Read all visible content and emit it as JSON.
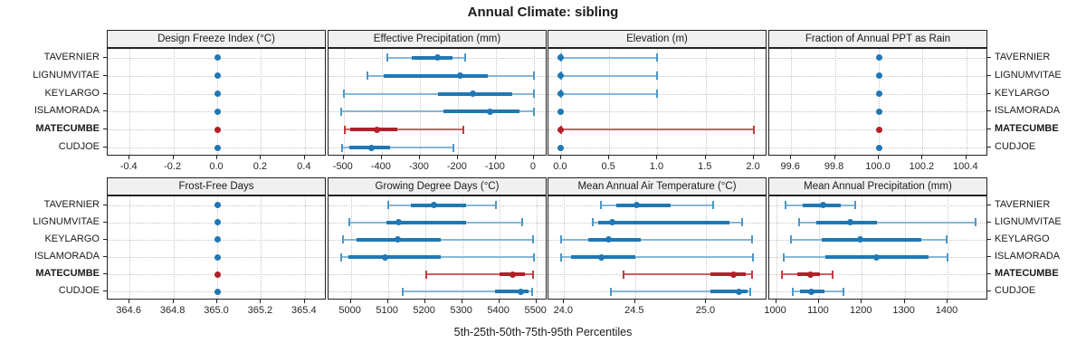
{
  "chart_data": {
    "type": "dotplot-trellis",
    "title": "Annual Climate: sibling",
    "footer": "5th-25th-50th-75th-95th Percentiles",
    "percentile_levels": [
      5,
      25,
      50,
      75,
      95
    ],
    "stations": [
      "TAVERNIER",
      "LIGNUMVITAE",
      "KEYLARGO",
      "ISLAMORADA",
      "MATECUMBE",
      "CUDJOE"
    ],
    "highlighted_station": "MATECUMBE",
    "legend_position": "bottom-caption",
    "grid": "dotted",
    "colors": {
      "blue": "#1f78b4",
      "blue_light": "#85b7d7",
      "blue_cap": "#4d97c6",
      "red": "#b2202a",
      "red_light": "#cd5f63",
      "red_cap": "#bf3a40",
      "strip_bg": "#f0f0f0",
      "border": "#222222",
      "gridline": "#c6c6c6"
    },
    "panels": [
      {
        "title": "Design Freeze Index (°C)",
        "row": 0,
        "col": 0,
        "range": [
          -0.5,
          0.5
        ],
        "ticks": [
          {
            "v": -0.4,
            "label": "-0.4"
          },
          {
            "v": -0.2,
            "label": "-0.2"
          },
          {
            "v": 0.0,
            "label": "0.0"
          },
          {
            "v": 0.2,
            "label": "0.2"
          },
          {
            "v": 0.4,
            "label": "0.4"
          }
        ],
        "values": {
          "TAVERNIER": [
            0,
            0,
            0,
            0,
            0
          ],
          "LIGNUMVITAE": [
            0,
            0,
            0,
            0,
            0
          ],
          "KEYLARGO": [
            0,
            0,
            0,
            0,
            0
          ],
          "ISLAMORADA": [
            0,
            0,
            0,
            0,
            0
          ],
          "MATECUMBE": [
            0,
            0,
            0,
            0,
            0
          ],
          "CUDJOE": [
            0,
            0,
            0,
            0,
            0
          ]
        }
      },
      {
        "title": "Effective Precipitation (mm)",
        "row": 0,
        "col": 1,
        "range": [
          -540,
          36
        ],
        "ticks": [
          {
            "v": -500,
            "label": "-500"
          },
          {
            "v": -400,
            "label": "-400"
          },
          {
            "v": -300,
            "label": "-300"
          },
          {
            "v": -200,
            "label": "-200"
          },
          {
            "v": -100,
            "label": "-100"
          },
          {
            "v": 0,
            "label": "0"
          }
        ],
        "values": {
          "TAVERNIER": [
            -385,
            -320,
            -253,
            -214,
            -180
          ],
          "LIGNUMVITAE": [
            -437,
            -395,
            -193,
            -121,
            0
          ],
          "KEYLARGO": [
            -500,
            -252,
            -160,
            -57,
            0
          ],
          "ISLAMORADA": [
            -507,
            -238,
            -115,
            -38,
            0
          ],
          "MATECUMBE": [
            -498,
            -483,
            -412,
            -360,
            -186
          ],
          "CUDJOE": [
            -505,
            -486,
            -426,
            -379,
            -212
          ]
        }
      },
      {
        "title": "Elevation (m)",
        "row": 0,
        "col": 2,
        "range": [
          -0.13,
          2.14
        ],
        "ticks": [
          {
            "v": 0.0,
            "label": "0.0"
          },
          {
            "v": 0.5,
            "label": "0.5"
          },
          {
            "v": 1.0,
            "label": "1.0"
          },
          {
            "v": 1.5,
            "label": "1.5"
          },
          {
            "v": 2.0,
            "label": "2.0"
          }
        ],
        "values": {
          "TAVERNIER": [
            0,
            0,
            0,
            0,
            1
          ],
          "LIGNUMVITAE": [
            0,
            0,
            0,
            0,
            1
          ],
          "KEYLARGO": [
            0,
            0,
            0,
            0,
            1
          ],
          "ISLAMORADA": [
            0,
            0,
            0,
            0,
            0
          ],
          "MATECUMBE": [
            0,
            0,
            0,
            0,
            2
          ],
          "CUDJOE": [
            0,
            0,
            0,
            0,
            0
          ]
        }
      },
      {
        "title": "Fraction of Annual PPT as Rain",
        "row": 0,
        "col": 3,
        "range": [
          99.5,
          100.5
        ],
        "ticks": [
          {
            "v": 99.6,
            "label": "99.6"
          },
          {
            "v": 99.8,
            "label": "99.8"
          },
          {
            "v": 100.0,
            "label": "100.0"
          },
          {
            "v": 100.2,
            "label": "100.2"
          },
          {
            "v": 100.4,
            "label": "100.4"
          }
        ],
        "values": {
          "TAVERNIER": [
            100,
            100,
            100,
            100,
            100
          ],
          "LIGNUMVITAE": [
            100,
            100,
            100,
            100,
            100
          ],
          "KEYLARGO": [
            100,
            100,
            100,
            100,
            100
          ],
          "ISLAMORADA": [
            100,
            100,
            100,
            100,
            100
          ],
          "MATECUMBE": [
            100,
            100,
            100,
            100,
            100
          ],
          "CUDJOE": [
            100,
            100,
            100,
            100,
            100
          ]
        }
      },
      {
        "title": "Frost-Free Days",
        "row": 1,
        "col": 0,
        "range": [
          364.5,
          365.5
        ],
        "ticks": [
          {
            "v": 364.6,
            "label": "364.6"
          },
          {
            "v": 364.8,
            "label": "364.8"
          },
          {
            "v": 365.0,
            "label": "365.0"
          },
          {
            "v": 365.2,
            "label": "365.2"
          },
          {
            "v": 365.4,
            "label": "365.4"
          }
        ],
        "values": {
          "TAVERNIER": [
            365,
            365,
            365,
            365,
            365
          ],
          "LIGNUMVITAE": [
            365,
            365,
            365,
            365,
            365
          ],
          "KEYLARGO": [
            365,
            365,
            365,
            365,
            365
          ],
          "ISLAMORADA": [
            365,
            365,
            365,
            365,
            365
          ],
          "MATECUMBE": [
            365,
            365,
            365,
            365,
            365
          ],
          "CUDJOE": [
            365,
            365,
            365,
            365,
            365
          ]
        }
      },
      {
        "title": "Growing Degree Days (°C)",
        "row": 1,
        "col": 1,
        "range": [
          4940,
          5530
        ],
        "ticks": [
          {
            "v": 5000,
            "label": "5000"
          },
          {
            "v": 5100,
            "label": "5100"
          },
          {
            "v": 5200,
            "label": "5200"
          },
          {
            "v": 5300,
            "label": "5300"
          },
          {
            "v": 5400,
            "label": "5400"
          },
          {
            "v": 5500,
            "label": "5500"
          }
        ],
        "values": {
          "TAVERNIER": [
            5102,
            5161,
            5224,
            5311,
            5391
          ],
          "LIGNUMVITAE": [
            4996,
            5095,
            5128,
            5310,
            5461
          ],
          "KEYLARGO": [
            4978,
            5015,
            5126,
            5242,
            5492
          ],
          "ISLAMORADA": [
            4974,
            4994,
            5092,
            5242,
            5494
          ],
          "MATECUMBE": [
            5204,
            5401,
            5437,
            5470,
            5490
          ],
          "CUDJOE": [
            5141,
            5389,
            5458,
            5480,
            5489
          ]
        }
      },
      {
        "title": "Mean Annual Air Temperature (°C)",
        "row": 1,
        "col": 2,
        "range": [
          23.89,
          25.43
        ],
        "ticks": [
          {
            "v": 24.0,
            "label": "24.0"
          },
          {
            "v": 24.5,
            "label": "24.5"
          },
          {
            "v": 25.0,
            "label": "25.0"
          }
        ],
        "values": {
          "TAVERNIER": [
            24.26,
            24.37,
            24.51,
            24.75,
            25.05
          ],
          "LIGNUMVITAE": [
            24.2,
            24.24,
            24.34,
            25.16,
            25.25
          ],
          "KEYLARGO": [
            23.98,
            24.17,
            24.31,
            24.54,
            25.32
          ],
          "ISLAMORADA": [
            23.98,
            24.05,
            24.26,
            24.5,
            25.33
          ],
          "MATECUMBE": [
            24.42,
            25.03,
            25.19,
            25.28,
            25.32
          ],
          "CUDJOE": [
            24.33,
            25.03,
            25.23,
            25.29,
            25.31
          ]
        }
      },
      {
        "title": "Mean Annual Precipitation (mm)",
        "row": 1,
        "col": 3,
        "range": [
          984,
          1495
        ],
        "ticks": [
          {
            "v": 1000,
            "label": "1000"
          },
          {
            "v": 1100,
            "label": "1100"
          },
          {
            "v": 1200,
            "label": "1200"
          },
          {
            "v": 1300,
            "label": "1300"
          },
          {
            "v": 1400,
            "label": "1400"
          }
        ],
        "values": {
          "TAVERNIER": [
            1021,
            1063,
            1110,
            1151,
            1184
          ],
          "LIGNUMVITAE": [
            1053,
            1093,
            1174,
            1236,
            1465
          ],
          "KEYLARGO": [
            1035,
            1106,
            1197,
            1339,
            1398
          ],
          "ISLAMORADA": [
            1018,
            1114,
            1234,
            1356,
            1400
          ],
          "MATECUMBE": [
            1013,
            1049,
            1081,
            1102,
            1132
          ],
          "CUDJOE": [
            1039,
            1056,
            1083,
            1113,
            1157
          ]
        }
      }
    ]
  }
}
